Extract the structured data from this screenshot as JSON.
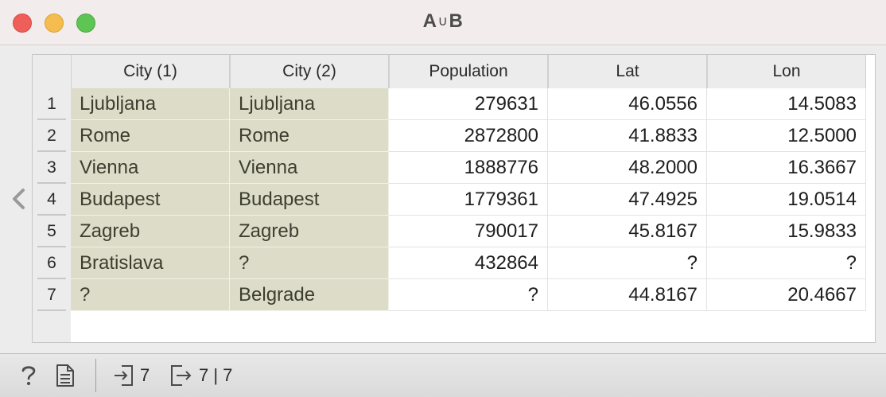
{
  "window": {
    "title_a": "A",
    "title_union": "∪",
    "title_b": "B"
  },
  "table": {
    "columns": [
      {
        "label": "City (1)"
      },
      {
        "label": "City (2)"
      },
      {
        "label": "Population"
      },
      {
        "label": "Lat"
      },
      {
        "label": "Lon"
      }
    ],
    "rows": [
      {
        "index": "1",
        "city1": "Ljubljana",
        "city2": "Ljubljana",
        "population": "279631",
        "lat": "46.0556",
        "lon": "14.5083"
      },
      {
        "index": "2",
        "city1": "Rome",
        "city2": "Rome",
        "population": "2872800",
        "lat": "41.8833",
        "lon": "12.5000"
      },
      {
        "index": "3",
        "city1": "Vienna",
        "city2": "Vienna",
        "population": "1888776",
        "lat": "48.2000",
        "lon": "16.3667"
      },
      {
        "index": "4",
        "city1": "Budapest",
        "city2": "Budapest",
        "population": "1779361",
        "lat": "47.4925",
        "lon": "19.0514"
      },
      {
        "index": "5",
        "city1": "Zagreb",
        "city2": "Zagreb",
        "population": "790017",
        "lat": "45.8167",
        "lon": "15.9833"
      },
      {
        "index": "6",
        "city1": "Bratislava",
        "city2": "?",
        "population": "432864",
        "lat": "?",
        "lon": "?"
      },
      {
        "index": "7",
        "city1": "?",
        "city2": "Belgrade",
        "population": "?",
        "lat": "44.8167",
        "lon": "20.4667"
      }
    ]
  },
  "statusbar": {
    "input_count": "7",
    "output_count": "7 | 7",
    "icons": [
      "help-icon",
      "report-icon",
      "input-icon",
      "output-icon"
    ]
  },
  "colors": {
    "meta_cell_bg": "#dcdcc8",
    "close": "#ee5f5a",
    "minimize": "#f5bd4f",
    "maximize": "#5ec454"
  }
}
